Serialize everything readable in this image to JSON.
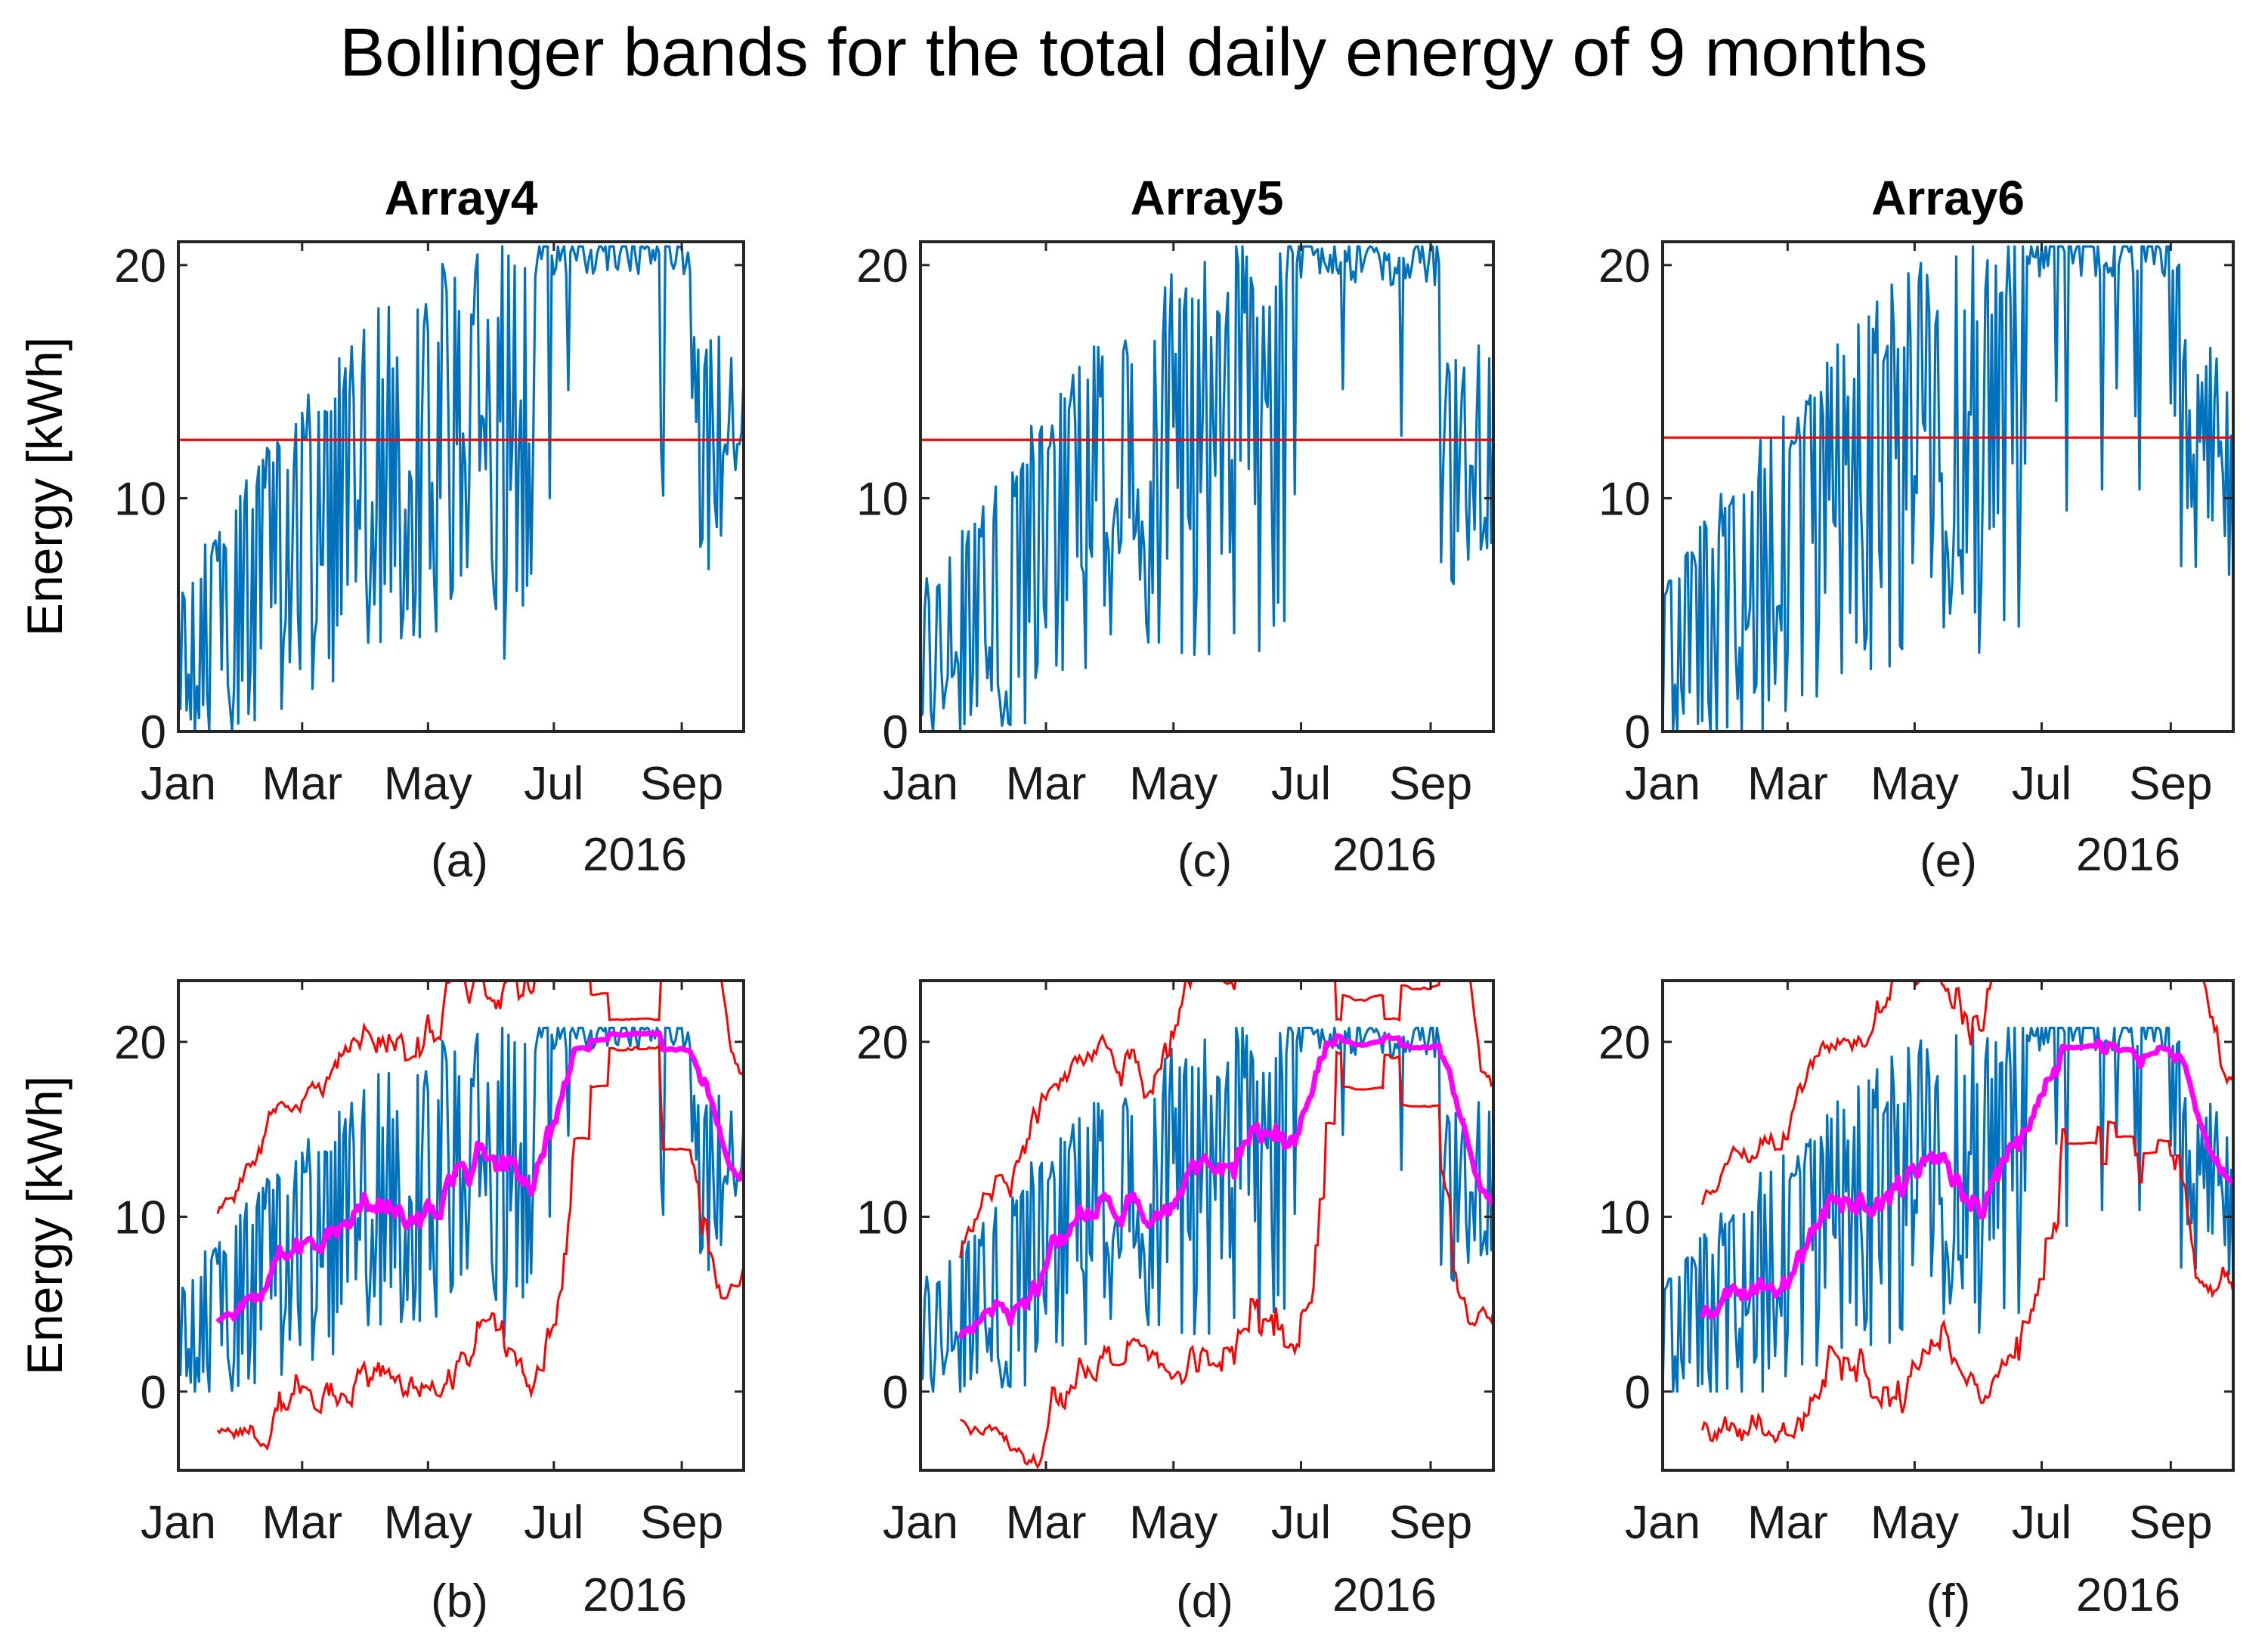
{
  "figure_title": "Bollinger bands for the total daily energy of 9 months",
  "colors": {
    "daily_energy": "#0072BD",
    "band": "#FF0000",
    "moving_average": "#FF00FF",
    "threshold": "#FF0000",
    "axes": "#262626",
    "text": "#000000"
  },
  "chart_data": [
    {
      "id": "a",
      "type": "line",
      "title": "Array4",
      "label": "(a)",
      "ylabel": "Energy [kWh]",
      "year_label": "2016",
      "x_ticks": [
        "Jan",
        "Mar",
        "May",
        "Jul",
        "Sep"
      ],
      "x_tick_days": [
        1,
        61,
        122,
        183,
        245
      ],
      "y_ticks": [
        0,
        10,
        20
      ],
      "xlim": [
        1,
        275
      ],
      "ylim": [
        0,
        21
      ],
      "threshold": 12.5,
      "series": [
        {
          "name": "daily energy",
          "seed": 4,
          "scale": 1.0,
          "lines": [
            "daily"
          ]
        },
        {
          "name": "threshold",
          "value": 12.5
        }
      ]
    },
    {
      "id": "b",
      "type": "line",
      "title": "",
      "label": "(b)",
      "ylabel": "Energy [kWh]",
      "year_label": "2016",
      "x_ticks": [
        "Jan",
        "Mar",
        "May",
        "Jul",
        "Sep"
      ],
      "x_tick_days": [
        1,
        61,
        122,
        183,
        245
      ],
      "y_ticks": [
        0,
        10,
        20
      ],
      "xlim": [
        1,
        275
      ],
      "ylim": [
        -4.5,
        23.5
      ],
      "series": [
        {
          "name": "daily energy",
          "seed": 4,
          "scale": 1.0
        },
        {
          "name": "20-day moving average"
        },
        {
          "name": "upper band"
        },
        {
          "name": "lower band"
        }
      ]
    },
    {
      "id": "c",
      "type": "line",
      "title": "Array5",
      "label": "(c)",
      "ylabel": "",
      "year_label": "2016",
      "x_ticks": [
        "Jan",
        "Mar",
        "May",
        "Jul",
        "Sep"
      ],
      "x_tick_days": [
        1,
        61,
        122,
        183,
        245
      ],
      "y_ticks": [
        0,
        10,
        20
      ],
      "xlim": [
        1,
        275
      ],
      "ylim": [
        0,
        21
      ],
      "threshold": 12.5,
      "series": [
        {
          "name": "daily energy",
          "seed": 5,
          "scale": 0.98
        },
        {
          "name": "threshold",
          "value": 12.5
        }
      ]
    },
    {
      "id": "d",
      "type": "line",
      "title": "",
      "label": "(d)",
      "ylabel": "",
      "year_label": "2016",
      "x_ticks": [
        "Jan",
        "Mar",
        "May",
        "Jul",
        "Sep"
      ],
      "x_tick_days": [
        1,
        61,
        122,
        183,
        245
      ],
      "y_ticks": [
        0,
        10,
        20
      ],
      "xlim": [
        1,
        275
      ],
      "ylim": [
        -4.5,
        23.5
      ],
      "series": [
        {
          "name": "daily energy",
          "seed": 5,
          "scale": 0.98
        },
        {
          "name": "20-day moving average"
        },
        {
          "name": "upper band"
        },
        {
          "name": "lower band"
        }
      ]
    },
    {
      "id": "e",
      "type": "line",
      "title": "Array6",
      "label": "(e)",
      "ylabel": "",
      "year_label": "2016",
      "x_ticks": [
        "Jan",
        "Mar",
        "May",
        "Jul",
        "Sep"
      ],
      "x_tick_days": [
        1,
        61,
        122,
        183,
        245
      ],
      "y_ticks": [
        0,
        10,
        20
      ],
      "xlim": [
        1,
        275
      ],
      "ylim": [
        0,
        21
      ],
      "threshold": 12.6,
      "series": [
        {
          "name": "daily energy",
          "seed": 6,
          "scale": 1.0
        },
        {
          "name": "threshold",
          "value": 12.6
        }
      ]
    },
    {
      "id": "f",
      "type": "line",
      "title": "",
      "label": "(f)",
      "ylabel": "",
      "year_label": "2016",
      "x_ticks": [
        "Jan",
        "Mar",
        "May",
        "Jul",
        "Sep"
      ],
      "x_tick_days": [
        1,
        61,
        122,
        183,
        245
      ],
      "y_ticks": [
        0,
        10,
        20
      ],
      "xlim": [
        1,
        275
      ],
      "ylim": [
        -4.5,
        23.5
      ],
      "series": [
        {
          "name": "daily energy",
          "seed": 6,
          "scale": 1.0
        },
        {
          "name": "20-day moving average"
        },
        {
          "name": "upper band"
        },
        {
          "name": "lower band"
        }
      ]
    }
  ]
}
